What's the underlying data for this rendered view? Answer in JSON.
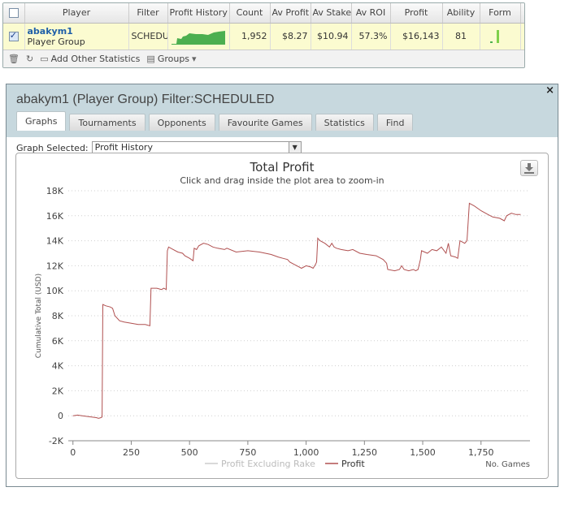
{
  "stats": {
    "headers": [
      "",
      "Player",
      "Filter",
      "Profit History",
      "Count",
      "Av Profit",
      "Av Stake",
      "Av ROI",
      "Profit",
      "Ability",
      "Form",
      ""
    ],
    "row": {
      "checked": true,
      "player_name": "abakym1",
      "player_group": "Player Group",
      "filter": "SCHEDU",
      "count": "1,952",
      "av_profit": "$8.27",
      "av_stake": "$10.94",
      "av_roi": "57.3%",
      "profit": "$16,143",
      "ability": "81",
      "dismiss": "x"
    },
    "toolbar": {
      "trash_icon": "🗑",
      "refresh_icon": "↻",
      "add_stats_label": "Add Other Statistics",
      "groups_label": "Groups"
    },
    "colors": {
      "row_highlight": "#fbfbd0",
      "spark": "#4caf50"
    }
  },
  "window": {
    "title": "abakym1 (Player Group) Filter:SCHEDULED",
    "close_icon": "×",
    "tabs": [
      "Graphs",
      "Tournaments",
      "Opponents",
      "Favourite Games",
      "Statistics",
      "Find"
    ],
    "active_tab": 0,
    "graph_select_label": "Graph Selected:",
    "graph_select_value": "Profit History"
  },
  "chart_data": {
    "type": "line",
    "title": "Total Profit",
    "subtitle": "Click and drag inside the plot area to zoom-in",
    "xlabel": "No. Games",
    "ylabel": "Cumulative Total (USD)",
    "xlim": [
      -20,
      1960
    ],
    "ylim": [
      -2000,
      18000
    ],
    "x_ticks": [
      0,
      250,
      500,
      750,
      1000,
      1250,
      1500,
      1750
    ],
    "x_tick_labels": [
      "0",
      "250",
      "500",
      "750",
      "1,000",
      "1,250",
      "1,500",
      "1,750"
    ],
    "y_ticks": [
      -2000,
      0,
      2000,
      4000,
      6000,
      8000,
      10000,
      12000,
      14000,
      16000,
      18000
    ],
    "y_tick_labels": [
      "-2K",
      "0",
      "2K",
      "4K",
      "6K",
      "8K",
      "10K",
      "12K",
      "14K",
      "16K",
      "18K"
    ],
    "grid": true,
    "legend_position": "bottom-center",
    "series": [
      {
        "name": "Profit Excluding Rake",
        "color": "#cccccc",
        "values": []
      },
      {
        "name": "Profit",
        "color": "#b05050",
        "points": [
          [
            0,
            0
          ],
          [
            20,
            50
          ],
          [
            40,
            0
          ],
          [
            60,
            -50
          ],
          [
            80,
            -100
          ],
          [
            100,
            -150
          ],
          [
            110,
            -200
          ],
          [
            120,
            -150
          ],
          [
            125,
            -100
          ],
          [
            128,
            8900
          ],
          [
            140,
            8800
          ],
          [
            160,
            8700
          ],
          [
            170,
            8600
          ],
          [
            180,
            8000
          ],
          [
            200,
            7600
          ],
          [
            220,
            7500
          ],
          [
            250,
            7400
          ],
          [
            280,
            7300
          ],
          [
            310,
            7300
          ],
          [
            330,
            7200
          ],
          [
            335,
            10200
          ],
          [
            360,
            10200
          ],
          [
            380,
            10100
          ],
          [
            390,
            10200
          ],
          [
            400,
            10100
          ],
          [
            405,
            13200
          ],
          [
            410,
            13500
          ],
          [
            430,
            13300
          ],
          [
            450,
            13100
          ],
          [
            470,
            13000
          ],
          [
            480,
            12800
          ],
          [
            500,
            12600
          ],
          [
            515,
            12400
          ],
          [
            520,
            13400
          ],
          [
            530,
            13300
          ],
          [
            540,
            13600
          ],
          [
            560,
            13800
          ],
          [
            580,
            13700
          ],
          [
            600,
            13500
          ],
          [
            620,
            13400
          ],
          [
            650,
            13300
          ],
          [
            660,
            13400
          ],
          [
            700,
            13100
          ],
          [
            750,
            13200
          ],
          [
            800,
            13100
          ],
          [
            850,
            12900
          ],
          [
            880,
            12700
          ],
          [
            900,
            12600
          ],
          [
            920,
            12500
          ],
          [
            930,
            12300
          ],
          [
            950,
            12100
          ],
          [
            970,
            11900
          ],
          [
            980,
            11800
          ],
          [
            1000,
            12000
          ],
          [
            1020,
            11900
          ],
          [
            1030,
            11800
          ],
          [
            1040,
            12100
          ],
          [
            1045,
            12300
          ],
          [
            1050,
            14200
          ],
          [
            1060,
            14000
          ],
          [
            1080,
            13800
          ],
          [
            1100,
            13500
          ],
          [
            1110,
            13800
          ],
          [
            1120,
            13500
          ],
          [
            1130,
            13400
          ],
          [
            1150,
            13300
          ],
          [
            1180,
            13200
          ],
          [
            1200,
            13300
          ],
          [
            1230,
            13000
          ],
          [
            1260,
            12900
          ],
          [
            1300,
            12800
          ],
          [
            1330,
            12500
          ],
          [
            1345,
            12200
          ],
          [
            1350,
            11700
          ],
          [
            1380,
            11600
          ],
          [
            1400,
            11700
          ],
          [
            1410,
            12000
          ],
          [
            1420,
            11700
          ],
          [
            1440,
            11600
          ],
          [
            1460,
            11700
          ],
          [
            1470,
            11600
          ],
          [
            1480,
            11700
          ],
          [
            1490,
            12500
          ],
          [
            1495,
            13200
          ],
          [
            1520,
            13000
          ],
          [
            1540,
            13300
          ],
          [
            1560,
            13200
          ],
          [
            1580,
            13500
          ],
          [
            1600,
            13000
          ],
          [
            1610,
            13800
          ],
          [
            1620,
            12800
          ],
          [
            1640,
            12700
          ],
          [
            1650,
            12600
          ],
          [
            1660,
            14000
          ],
          [
            1680,
            13800
          ],
          [
            1690,
            14000
          ],
          [
            1700,
            17000
          ],
          [
            1720,
            16800
          ],
          [
            1750,
            16400
          ],
          [
            1780,
            16100
          ],
          [
            1800,
            15900
          ],
          [
            1830,
            15800
          ],
          [
            1850,
            15600
          ],
          [
            1860,
            16000
          ],
          [
            1880,
            16200
          ],
          [
            1900,
            16100
          ],
          [
            1920,
            16100
          ]
        ]
      }
    ]
  }
}
